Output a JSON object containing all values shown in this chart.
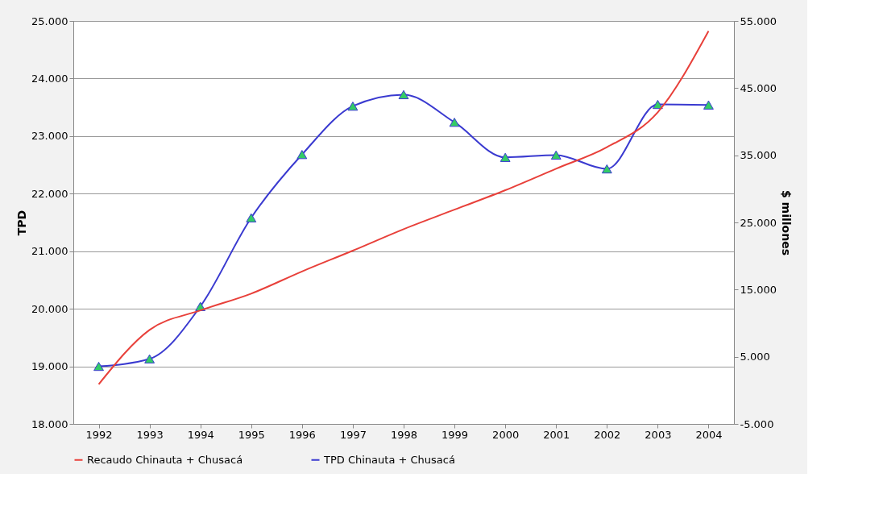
{
  "chart_data": {
    "type": "line",
    "categories": [
      "1992",
      "1993",
      "1994",
      "1995",
      "1996",
      "1997",
      "1998",
      "1999",
      "2000",
      "2001",
      "2002",
      "2003",
      "2004"
    ],
    "ylabel": "TPD",
    "y2label": "$ millones",
    "ylim": [
      18000,
      25000
    ],
    "yticks": [
      {
        "value": 18000,
        "label": "18.000"
      },
      {
        "value": 19000,
        "label": "19.000"
      },
      {
        "value": 20000,
        "label": "20.000"
      },
      {
        "value": 21000,
        "label": "21.000"
      },
      {
        "value": 22000,
        "label": "22.000"
      },
      {
        "value": 23000,
        "label": "23.000"
      },
      {
        "value": 24000,
        "label": "24.000"
      },
      {
        "value": 25000,
        "label": "25.000"
      }
    ],
    "y2lim": [
      -5000,
      55000
    ],
    "y2ticks": [
      {
        "value": -5000,
        "label": "-5.000"
      },
      {
        "value": 5000,
        "label": "5.000"
      },
      {
        "value": 15000,
        "label": "15.000"
      },
      {
        "value": 25000,
        "label": "25.000"
      },
      {
        "value": 35000,
        "label": "35.000"
      },
      {
        "value": 45000,
        "label": "45.000"
      },
      {
        "value": 55000,
        "label": "55.000"
      }
    ],
    "series": [
      {
        "name": "Recaudo Chinauta + Chusacá",
        "color": "#e8403a",
        "axis": "y2",
        "values": [
          900,
          9000,
          11900,
          14400,
          17700,
          20800,
          24000,
          26900,
          29800,
          33000,
          36200,
          41400,
          53500
        ]
      },
      {
        "name": "TPD Chinauta + Chusacá",
        "color": "#3a3ad0",
        "marker": "triangle",
        "values": [
          19000,
          19130,
          20040,
          21580,
          22680,
          23520,
          23720,
          23240,
          22630,
          22670,
          22430,
          23550,
          23540
        ]
      }
    ],
    "grid": "y",
    "legend": "bottom"
  }
}
